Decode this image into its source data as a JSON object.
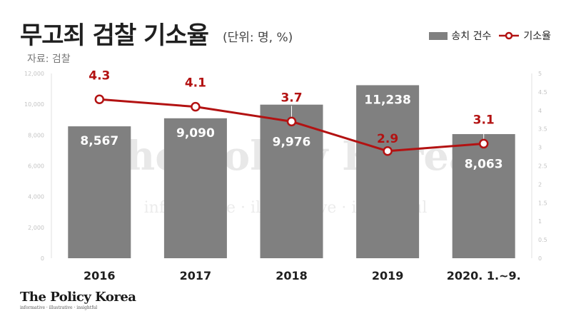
{
  "header": {
    "title": "무고죄 검찰 기소율",
    "unit": "(단위: 명, %)",
    "source": "자료: 검찰"
  },
  "legend": {
    "bar_label": "송치 건수",
    "line_label": "기소율"
  },
  "brand": {
    "logo_name": "The Policy Korea",
    "logo_tagline": "informative · illustrative · insightful",
    "watermark": "The Policy Korea",
    "watermark_sub": "informative · illustrative · insightful"
  },
  "colors": {
    "bar": "#808080",
    "line": "#b31212",
    "text_dark": "#1f1f1f"
  },
  "chart_data": {
    "type": "bar",
    "categories": [
      "2016",
      "2017",
      "2018",
      "2019",
      "2020. 1.~9."
    ],
    "series": [
      {
        "name": "송치 건수",
        "type": "bar",
        "axis": "left",
        "values": [
          8567,
          9090,
          9976,
          11238,
          8063
        ],
        "labels": [
          "8,567",
          "9,090",
          "9,976",
          "11,238",
          "8,063"
        ]
      },
      {
        "name": "기소율",
        "type": "line",
        "axis": "right",
        "values": [
          4.3,
          4.1,
          3.7,
          2.9,
          3.1
        ],
        "labels": [
          "4.3",
          "4.1",
          "3.7",
          "2.9",
          "3.1"
        ]
      }
    ],
    "left_axis": {
      "min": 0,
      "max": 12000,
      "ticks": [
        "0",
        "2,000",
        "4,000",
        "6,000",
        "8,000",
        "10,000",
        "12,000"
      ]
    },
    "right_axis": {
      "min": 0,
      "max": 5,
      "ticks": [
        "0",
        "0.5",
        "1",
        "1.5",
        "2",
        "2.5",
        "3",
        "3.5",
        "4",
        "4.5",
        "5"
      ]
    },
    "grid": false,
    "legend_position": "top-right"
  }
}
